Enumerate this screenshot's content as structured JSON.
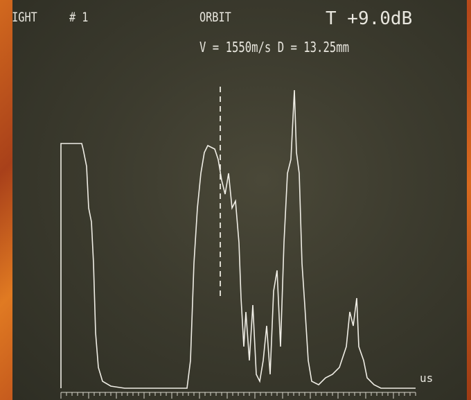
{
  "header": {
    "channel": "RIGHT",
    "probe": "# 1",
    "mode": "ORBIT",
    "gain": "T +9.0dB",
    "settings": "V = 1550m/s D = 13.25mm"
  },
  "axis": {
    "unit": "us"
  }
}
